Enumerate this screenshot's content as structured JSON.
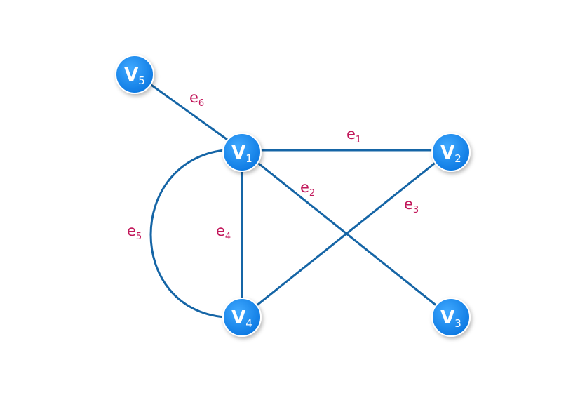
{
  "nodes": [
    {
      "id": "v1",
      "letter": "V",
      "index": "1"
    },
    {
      "id": "v2",
      "letter": "V",
      "index": "2"
    },
    {
      "id": "v3",
      "letter": "V",
      "index": "3"
    },
    {
      "id": "v4",
      "letter": "V",
      "index": "4"
    },
    {
      "id": "v5",
      "letter": "V",
      "index": "5"
    }
  ],
  "edges": [
    {
      "id": "e1",
      "letter": "e",
      "index": "1",
      "from": "v1",
      "to": "v2"
    },
    {
      "id": "e2",
      "letter": "e",
      "index": "2",
      "from": "v1",
      "to": "v3"
    },
    {
      "id": "e3",
      "letter": "e",
      "index": "3",
      "from": "v2",
      "to": "v4"
    },
    {
      "id": "e4",
      "letter": "e",
      "index": "4",
      "from": "v1",
      "to": "v4"
    },
    {
      "id": "e5",
      "letter": "e",
      "index": "5",
      "from": "v1",
      "to": "v4"
    },
    {
      "id": "e6",
      "letter": "e",
      "index": "6",
      "from": "v5",
      "to": "v1"
    }
  ],
  "colors": {
    "node_fill_top": "#3fa9ff",
    "node_fill_bottom": "#0a76e0",
    "edge_stroke": "#1565a6",
    "edge_label": "#c2185b",
    "node_text": "#ffffff"
  }
}
